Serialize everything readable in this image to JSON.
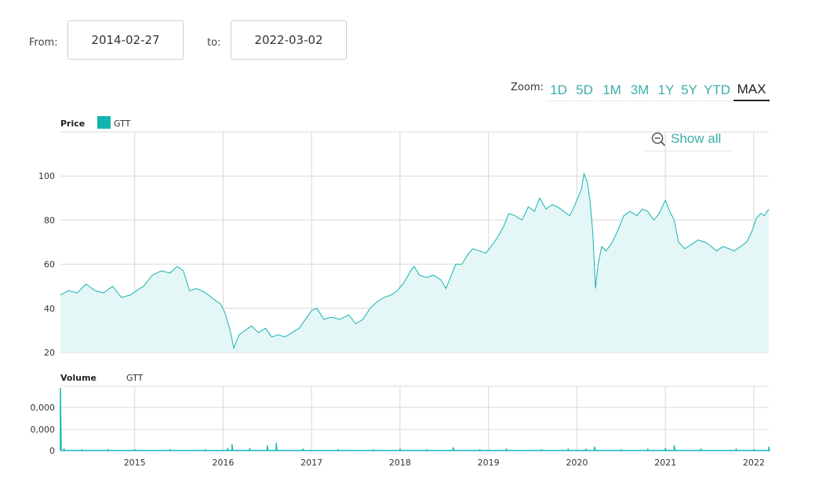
{
  "range": {
    "from_label": "From:",
    "from_value": "2014-02-27",
    "to_label": "to:",
    "to_value": "2022-03-02"
  },
  "zoom": {
    "label": "Zoom:",
    "buttons": [
      "1D",
      "5D",
      "1M",
      "3M",
      "1Y",
      "5Y",
      "YTD",
      "MAX"
    ],
    "active": "MAX"
  },
  "show_all": "Show all",
  "colors": {
    "series": "#13b5b1",
    "fill": "#e5f6f6",
    "grid": "#d8d8d8",
    "accent": "#3aafa9"
  },
  "chart_data": [
    {
      "type": "area",
      "title": "Price",
      "legend": [
        "GTT"
      ],
      "ylim": [
        20,
        120
      ],
      "yticks": [
        20,
        40,
        60,
        80,
        100
      ],
      "xlim": [
        2014.16,
        2022.17
      ],
      "xticks": [
        "2015",
        "2016",
        "2017",
        "2018",
        "2019",
        "2020",
        "2021",
        "2022"
      ],
      "series": [
        {
          "name": "GTT",
          "points": [
            [
              2014.16,
              46
            ],
            [
              2014.25,
              48
            ],
            [
              2014.35,
              47
            ],
            [
              2014.45,
              51
            ],
            [
              2014.55,
              48
            ],
            [
              2014.65,
              47
            ],
            [
              2014.75,
              50
            ],
            [
              2014.85,
              45
            ],
            [
              2014.95,
              46
            ],
            [
              2015.02,
              48
            ],
            [
              2015.1,
              50
            ],
            [
              2015.2,
              55
            ],
            [
              2015.3,
              57
            ],
            [
              2015.4,
              56
            ],
            [
              2015.48,
              59
            ],
            [
              2015.55,
              57
            ],
            [
              2015.62,
              48
            ],
            [
              2015.7,
              49
            ],
            [
              2015.8,
              47
            ],
            [
              2015.9,
              44
            ],
            [
              2015.97,
              42
            ],
            [
              2016.02,
              38
            ],
            [
              2016.08,
              30
            ],
            [
              2016.12,
              22
            ],
            [
              2016.18,
              28
            ],
            [
              2016.25,
              30
            ],
            [
              2016.32,
              32
            ],
            [
              2016.4,
              29
            ],
            [
              2016.48,
              31
            ],
            [
              2016.55,
              27
            ],
            [
              2016.62,
              28
            ],
            [
              2016.7,
              27
            ],
            [
              2016.78,
              29
            ],
            [
              2016.86,
              31
            ],
            [
              2016.93,
              35
            ],
            [
              2017.0,
              39
            ],
            [
              2017.06,
              40
            ],
            [
              2017.14,
              35
            ],
            [
              2017.22,
              36
            ],
            [
              2017.32,
              35
            ],
            [
              2017.42,
              37
            ],
            [
              2017.5,
              33
            ],
            [
              2017.58,
              35
            ],
            [
              2017.66,
              40
            ],
            [
              2017.74,
              43
            ],
            [
              2017.82,
              45
            ],
            [
              2017.9,
              46
            ],
            [
              2017.97,
              48
            ],
            [
              2018.05,
              52
            ],
            [
              2018.12,
              57
            ],
            [
              2018.16,
              59
            ],
            [
              2018.22,
              55
            ],
            [
              2018.3,
              54
            ],
            [
              2018.38,
              55
            ],
            [
              2018.46,
              53
            ],
            [
              2018.52,
              49
            ],
            [
              2018.58,
              55
            ],
            [
              2018.63,
              60
            ],
            [
              2018.7,
              60
            ],
            [
              2018.76,
              64
            ],
            [
              2018.82,
              67
            ],
            [
              2018.9,
              66
            ],
            [
              2018.97,
              65
            ],
            [
              2019.03,
              68
            ],
            [
              2019.1,
              72
            ],
            [
              2019.17,
              77
            ],
            [
              2019.23,
              83
            ],
            [
              2019.3,
              82
            ],
            [
              2019.38,
              80
            ],
            [
              2019.45,
              86
            ],
            [
              2019.52,
              84
            ],
            [
              2019.58,
              90
            ],
            [
              2019.65,
              85
            ],
            [
              2019.72,
              87
            ],
            [
              2019.78,
              86
            ],
            [
              2019.85,
              84
            ],
            [
              2019.92,
              82
            ],
            [
              2019.98,
              87
            ],
            [
              2020.05,
              94
            ],
            [
              2020.08,
              101
            ],
            [
              2020.12,
              97
            ],
            [
              2020.15,
              88
            ],
            [
              2020.18,
              74
            ],
            [
              2020.21,
              49
            ],
            [
              2020.24,
              60
            ],
            [
              2020.28,
              68
            ],
            [
              2020.33,
              66
            ],
            [
              2020.4,
              70
            ],
            [
              2020.47,
              76
            ],
            [
              2020.53,
              82
            ],
            [
              2020.6,
              84
            ],
            [
              2020.68,
              82
            ],
            [
              2020.74,
              85
            ],
            [
              2020.8,
              84
            ],
            [
              2020.87,
              80
            ],
            [
              2020.93,
              83
            ],
            [
              2021.0,
              89
            ],
            [
              2021.05,
              84
            ],
            [
              2021.1,
              80
            ],
            [
              2021.15,
              70
            ],
            [
              2021.22,
              67
            ],
            [
              2021.3,
              69
            ],
            [
              2021.37,
              71
            ],
            [
              2021.45,
              70
            ],
            [
              2021.52,
              68
            ],
            [
              2021.58,
              66
            ],
            [
              2021.65,
              68
            ],
            [
              2021.72,
              67
            ],
            [
              2021.78,
              66
            ],
            [
              2021.85,
              68
            ],
            [
              2021.92,
              70
            ],
            [
              2021.98,
              75
            ],
            [
              2022.03,
              81
            ],
            [
              2022.08,
              83
            ],
            [
              2022.12,
              82
            ],
            [
              2022.17,
              85
            ]
          ]
        }
      ]
    },
    {
      "type": "bar",
      "title": "Volume",
      "legend": [
        "GTT"
      ],
      "yticks": [
        "0",
        "0,000",
        "0,000"
      ],
      "xticks": [
        "2015",
        "2016",
        "2017",
        "2018",
        "2019",
        "2020",
        "2021",
        "2022"
      ],
      "note": "Volume near zero throughout with a large spike at the start of the range",
      "series": [
        {
          "name": "GTT",
          "points": [
            [
              2014.16,
              100
            ],
            [
              2014.2,
              3
            ],
            [
              2014.4,
              2
            ],
            [
              2014.7,
              2
            ],
            [
              2015.0,
              2
            ],
            [
              2015.4,
              2
            ],
            [
              2015.8,
              2
            ],
            [
              2016.05,
              4
            ],
            [
              2016.1,
              10
            ],
            [
              2016.3,
              4
            ],
            [
              2016.5,
              8
            ],
            [
              2016.6,
              12
            ],
            [
              2016.9,
              3
            ],
            [
              2017.3,
              2
            ],
            [
              2017.7,
              2
            ],
            [
              2018.0,
              3
            ],
            [
              2018.3,
              2
            ],
            [
              2018.6,
              5
            ],
            [
              2018.9,
              2
            ],
            [
              2019.2,
              3
            ],
            [
              2019.6,
              2
            ],
            [
              2019.9,
              3
            ],
            [
              2020.1,
              3
            ],
            [
              2020.2,
              6
            ],
            [
              2020.5,
              2
            ],
            [
              2020.8,
              3
            ],
            [
              2021.0,
              4
            ],
            [
              2021.1,
              8
            ],
            [
              2021.4,
              3
            ],
            [
              2021.8,
              3
            ],
            [
              2022.0,
              2
            ],
            [
              2022.17,
              6
            ]
          ]
        }
      ]
    }
  ]
}
